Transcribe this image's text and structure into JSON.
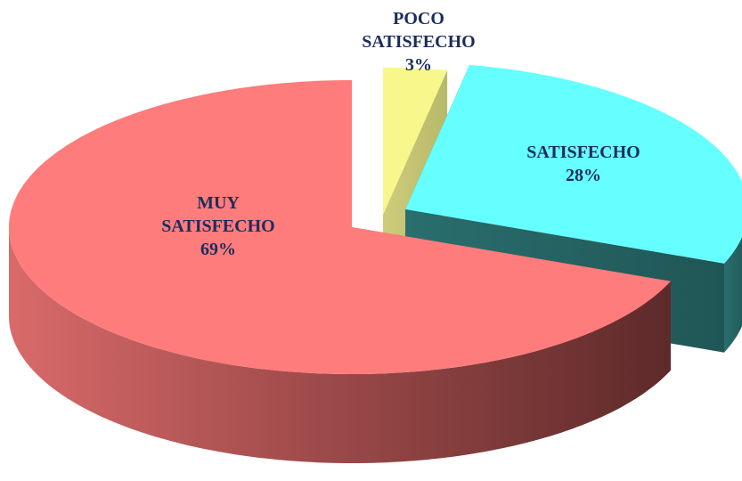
{
  "chart_data": {
    "type": "pie3d",
    "categories": [
      "POCO SATISFECHO",
      "SATISFECHO",
      "MUY SATISFECHO"
    ],
    "values": [
      3,
      28,
      69
    ],
    "value_labels": [
      "3%",
      "28%",
      "69%"
    ],
    "colors": [
      "#f7f78c",
      "#66ffff",
      "#ff7c7c"
    ]
  }
}
